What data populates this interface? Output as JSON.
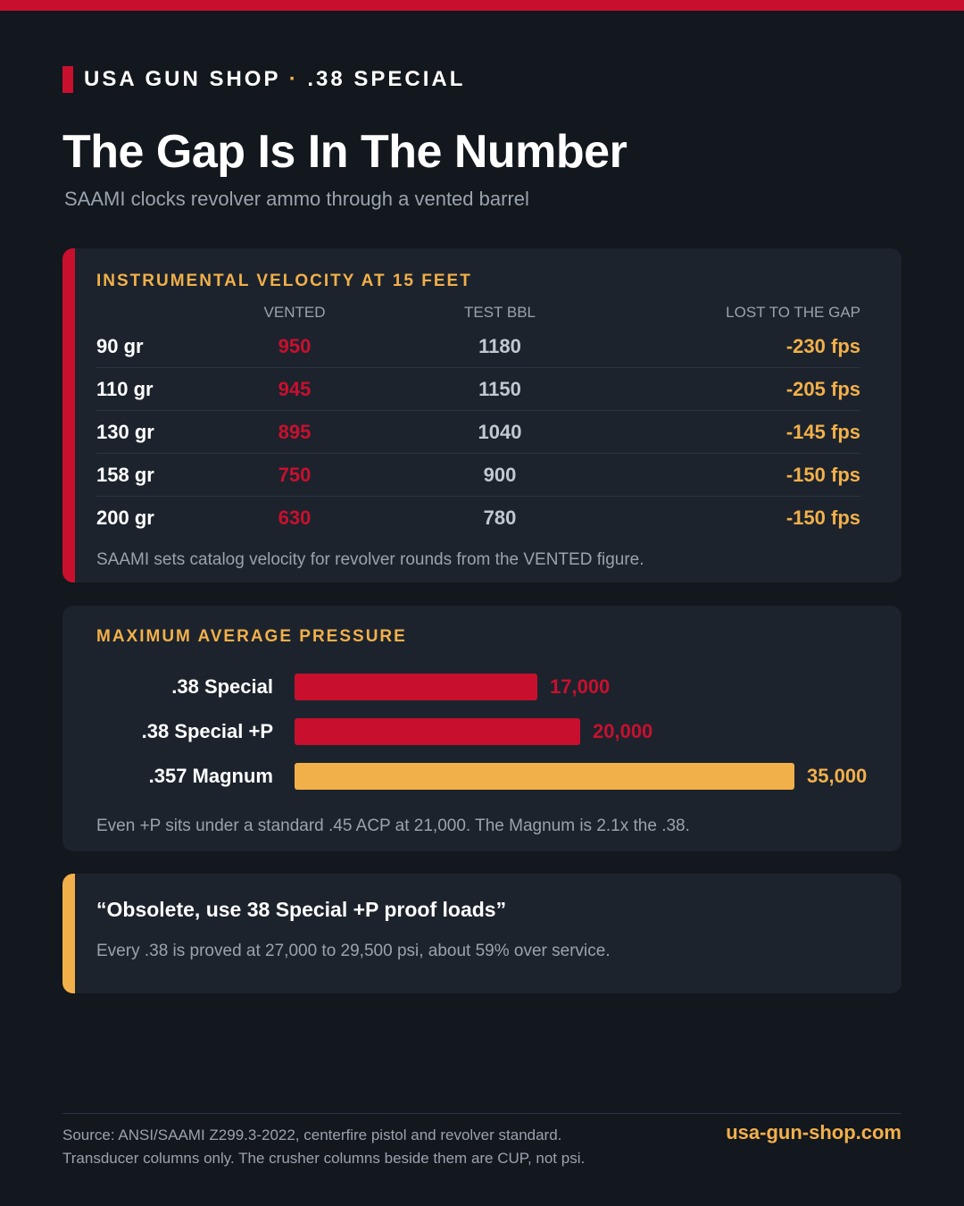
{
  "brand": {
    "name": "USA GUN SHOP",
    "separator": "·",
    "topic": ".38 SPECIAL"
  },
  "header": {
    "title": "The Gap Is In The Number",
    "subtitle": "SAAMI clocks revolver ammo through a vented barrel"
  },
  "velocity": {
    "section_title": "INSTRUMENTAL VELOCITY AT 15 FEET",
    "columns": {
      "weight": "",
      "vented": "VENTED",
      "test": "TEST BBL",
      "lost": "LOST TO THE GAP"
    },
    "note": "SAAMI sets catalog velocity for revolver rounds from the VENTED figure."
  },
  "pressure": {
    "section_title": "MAXIMUM AVERAGE PRESSURE",
    "note": "Even +P sits under a standard .45 ACP at 21,000. The Magnum is 2.1x the .38."
  },
  "quote": {
    "text": "“Obsolete, use 38 Special +P proof loads”",
    "note": "Every .38 is proved at 27,000 to 29,500 psi, about 59% over service."
  },
  "footer": {
    "source_line1": "Source: ANSI/SAAMI Z299.3-2022, centerfire pistol and revolver standard.",
    "source_line2": "Transducer columns only. The crusher columns beside them are CUP, not psi.",
    "url": "usa-gun-shop.com"
  },
  "colors": {
    "red": "#c8102e",
    "gold": "#f2b04a",
    "background": "#13171e",
    "card": "#1c232d"
  },
  "chart_data": [
    {
      "type": "table",
      "title": "INSTRUMENTAL VELOCITY AT 15 FEET",
      "columns": [
        "",
        "VENTED",
        "TEST BBL",
        "LOST TO THE GAP"
      ],
      "rows": [
        {
          "weight": "90 gr",
          "vented": "950",
          "test": "1180",
          "lost": "-230 fps"
        },
        {
          "weight": "110 gr",
          "vented": "945",
          "test": "1150",
          "lost": "-205 fps"
        },
        {
          "weight": "130 gr",
          "vented": "895",
          "test": "1040",
          "lost": "-145 fps"
        },
        {
          "weight": "158 gr",
          "vented": "750",
          "test": "900",
          "lost": "-150 fps"
        },
        {
          "weight": "200 gr",
          "vented": "630",
          "test": "780",
          "lost": "-150 fps"
        }
      ]
    },
    {
      "type": "bar",
      "orientation": "horizontal",
      "title": "MAXIMUM AVERAGE PRESSURE",
      "categories": [
        ".38 Special",
        ".38 Special +P",
        ".357 Magnum"
      ],
      "values": [
        17000,
        20000,
        35000
      ],
      "value_labels": [
        "17,000",
        "20,000",
        "35,000"
      ],
      "bar_colors": [
        "#c8102e",
        "#c8102e",
        "#f2b04a"
      ],
      "xlim": [
        0,
        35000
      ],
      "grid": false
    }
  ]
}
